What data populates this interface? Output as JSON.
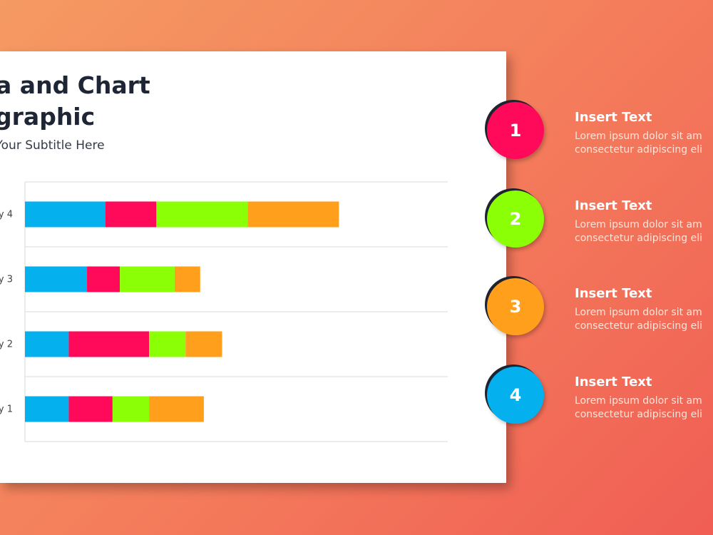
{
  "slide": {
    "title_line1": "ata and Chart",
    "title_line2": "fographic",
    "subtitle": "ert Your Subtitle Here"
  },
  "chart_data": {
    "type": "bar",
    "orientation": "horizontal",
    "stacked": true,
    "categories": [
      "y 4",
      "y 3",
      "y 2",
      "y 1"
    ],
    "series": [
      {
        "color": "#05b0ee",
        "values": [
          2.2,
          1.7,
          1.2,
          1.2
        ]
      },
      {
        "color": "#ff0a5a",
        "values": [
          1.4,
          0.9,
          2.2,
          1.2
        ]
      },
      {
        "color": "#8aff06",
        "values": [
          2.5,
          1.5,
          1.0,
          1.0
        ]
      },
      {
        "color": "#ff9f1c",
        "values": [
          2.5,
          0.7,
          1.0,
          1.5
        ]
      }
    ],
    "xlim": [
      0,
      10
    ],
    "grid": true,
    "title": "",
    "xlabel": "",
    "ylabel": ""
  },
  "steps": [
    {
      "number": "1",
      "color": "#ff0a5a",
      "title": "Insert Text",
      "line1": "Lorem ipsum dolor sit am",
      "line2": "consectetur adipiscing eli"
    },
    {
      "number": "2",
      "color": "#8aff06",
      "title": "Insert Text",
      "line1": "Lorem ipsum dolor sit am",
      "line2": "consectetur adipiscing eli"
    },
    {
      "number": "3",
      "color": "#ff9f1c",
      "title": "Insert Text",
      "line1": "Lorem ipsum dolor sit am",
      "line2": "consectetur adipiscing eli"
    },
    {
      "number": "4",
      "color": "#05b0ee",
      "title": "Insert Text",
      "line1": "Lorem ipsum dolor sit am",
      "line2": "consectetur adipiscing eli"
    }
  ]
}
